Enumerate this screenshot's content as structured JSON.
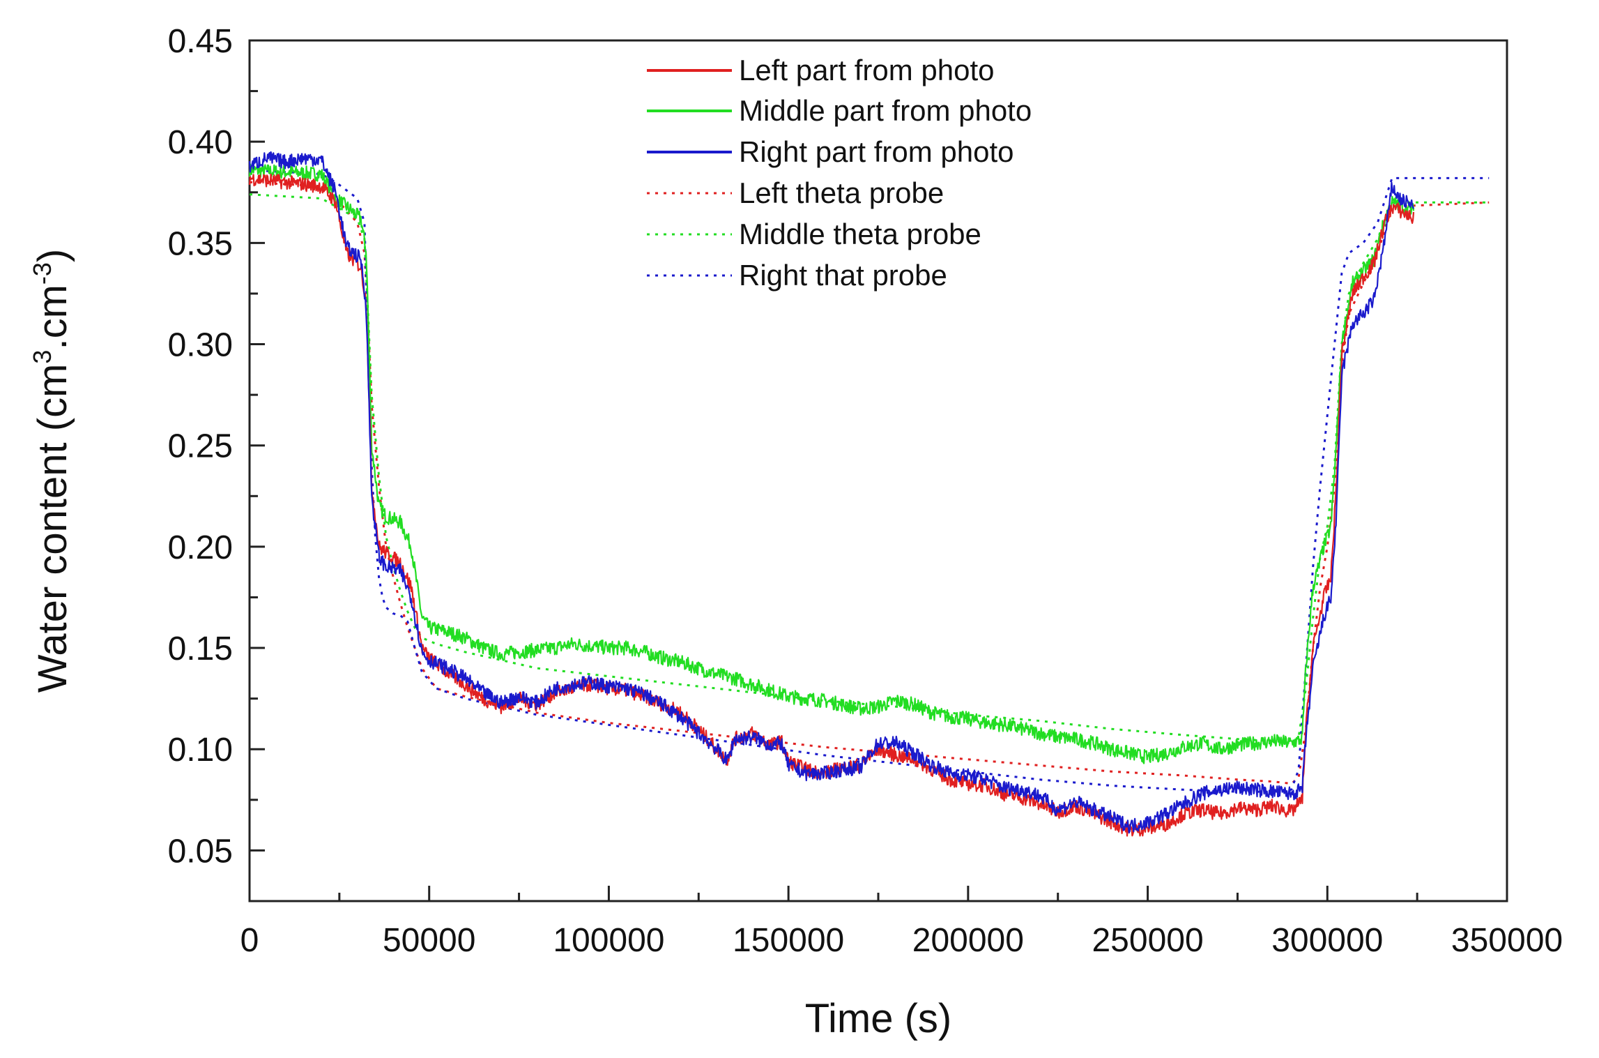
{
  "chart_data": {
    "type": "line",
    "title": "",
    "xlabel": "Time (s)",
    "ylabel_main": "Water content (cm",
    "ylabel_sup1": "3",
    "ylabel_mid": ".cm",
    "ylabel_sup2": "-3",
    "ylabel_end": ")",
    "xlim": [
      0,
      350000
    ],
    "ylim": [
      0.025,
      0.45
    ],
    "xticks": [
      "0",
      "50000",
      "100000",
      "150000",
      "200000",
      "250000",
      "300000",
      "350000"
    ],
    "yticks": [
      "0.05",
      "0.10",
      "0.15",
      "0.20",
      "0.25",
      "0.30",
      "0.35",
      "0.40",
      "0.45"
    ],
    "legend_position": "top-center",
    "series": [
      {
        "name": "Left part from photo",
        "style": "solid",
        "color": "#e02020",
        "x": [
          0,
          10000,
          20000,
          24000,
          27000,
          31000,
          32500,
          34000,
          36000,
          38000,
          42000,
          45000,
          48000,
          50000,
          55000,
          60000,
          65000,
          70000,
          75000,
          80000,
          85000,
          90000,
          95000,
          100000,
          105000,
          110000,
          115000,
          120000,
          125000,
          130000,
          133000,
          135000,
          140000,
          145000,
          148000,
          150000,
          155000,
          160000,
          165000,
          170000,
          175000,
          180000,
          185000,
          190000,
          195000,
          200000,
          205000,
          210000,
          215000,
          220000,
          225000,
          230000,
          235000,
          240000,
          245000,
          250000,
          255000,
          260000,
          265000,
          270000,
          275000,
          280000,
          285000,
          290000,
          293000,
          294000,
          296000,
          299000,
          301000,
          302500,
          304000,
          307000,
          310000,
          313000,
          316000,
          318000,
          320000,
          322000,
          324000
        ],
        "y": [
          0.382,
          0.38,
          0.378,
          0.37,
          0.345,
          0.338,
          0.32,
          0.23,
          0.2,
          0.197,
          0.192,
          0.18,
          0.15,
          0.145,
          0.138,
          0.132,
          0.125,
          0.121,
          0.125,
          0.122,
          0.128,
          0.13,
          0.132,
          0.13,
          0.129,
          0.126,
          0.122,
          0.118,
          0.11,
          0.1,
          0.095,
          0.105,
          0.108,
          0.102,
          0.104,
          0.094,
          0.09,
          0.088,
          0.091,
          0.092,
          0.1,
          0.097,
          0.095,
          0.09,
          0.085,
          0.083,
          0.082,
          0.078,
          0.076,
          0.073,
          0.069,
          0.072,
          0.068,
          0.064,
          0.06,
          0.061,
          0.063,
          0.068,
          0.07,
          0.068,
          0.071,
          0.07,
          0.072,
          0.069,
          0.075,
          0.11,
          0.15,
          0.175,
          0.185,
          0.23,
          0.295,
          0.325,
          0.333,
          0.34,
          0.36,
          0.368,
          0.366,
          0.364,
          0.362
        ]
      },
      {
        "name": "Middle part from photo",
        "style": "solid",
        "color": "#22dd22",
        "x": [
          0,
          10000,
          20000,
          24000,
          27000,
          31000,
          32500,
          34000,
          36000,
          38000,
          42000,
          45000,
          48000,
          50000,
          55000,
          60000,
          65000,
          70000,
          75000,
          80000,
          85000,
          90000,
          95000,
          100000,
          105000,
          110000,
          115000,
          120000,
          125000,
          130000,
          135000,
          140000,
          145000,
          150000,
          155000,
          160000,
          165000,
          170000,
          175000,
          180000,
          185000,
          190000,
          195000,
          200000,
          205000,
          210000,
          215000,
          220000,
          225000,
          230000,
          235000,
          240000,
          245000,
          250000,
          255000,
          260000,
          265000,
          270000,
          275000,
          280000,
          285000,
          290000,
          293000,
          294000,
          296000,
          299000,
          301000,
          302500,
          304000,
          307000,
          310000,
          313000,
          316000,
          318000,
          320000,
          322000,
          324000
        ],
        "y": [
          0.386,
          0.385,
          0.384,
          0.372,
          0.368,
          0.362,
          0.345,
          0.25,
          0.22,
          0.215,
          0.212,
          0.2,
          0.165,
          0.16,
          0.158,
          0.155,
          0.15,
          0.147,
          0.148,
          0.149,
          0.15,
          0.152,
          0.151,
          0.15,
          0.15,
          0.148,
          0.145,
          0.143,
          0.14,
          0.137,
          0.135,
          0.132,
          0.129,
          0.126,
          0.125,
          0.124,
          0.122,
          0.12,
          0.121,
          0.124,
          0.122,
          0.118,
          0.116,
          0.115,
          0.113,
          0.112,
          0.11,
          0.108,
          0.106,
          0.105,
          0.103,
          0.1,
          0.098,
          0.096,
          0.098,
          0.101,
          0.103,
          0.1,
          0.102,
          0.103,
          0.104,
          0.103,
          0.105,
          0.14,
          0.18,
          0.2,
          0.21,
          0.25,
          0.3,
          0.33,
          0.336,
          0.342,
          0.362,
          0.37,
          0.369,
          0.367,
          0.366
        ]
      },
      {
        "name": "Right part from photo",
        "style": "solid",
        "color": "#1a1acc",
        "x": [
          0,
          5000,
          10000,
          15000,
          20000,
          24000,
          27000,
          31000,
          32500,
          34000,
          36000,
          38000,
          42000,
          45000,
          48000,
          50000,
          55000,
          60000,
          65000,
          70000,
          75000,
          80000,
          85000,
          90000,
          95000,
          100000,
          105000,
          110000,
          115000,
          120000,
          125000,
          130000,
          133000,
          135000,
          140000,
          145000,
          148000,
          150000,
          155000,
          160000,
          165000,
          170000,
          175000,
          180000,
          185000,
          190000,
          195000,
          200000,
          205000,
          210000,
          215000,
          220000,
          225000,
          230000,
          235000,
          240000,
          245000,
          250000,
          255000,
          260000,
          265000,
          270000,
          275000,
          280000,
          285000,
          290000,
          293000,
          294000,
          296000,
          299000,
          301000,
          302500,
          304000,
          307000,
          310000,
          313000,
          316000,
          318000,
          320000,
          322000,
          324000
        ],
        "y": [
          0.388,
          0.392,
          0.39,
          0.392,
          0.391,
          0.375,
          0.348,
          0.342,
          0.318,
          0.225,
          0.195,
          0.19,
          0.188,
          0.175,
          0.148,
          0.144,
          0.14,
          0.135,
          0.128,
          0.123,
          0.126,
          0.123,
          0.13,
          0.132,
          0.133,
          0.131,
          0.13,
          0.127,
          0.122,
          0.116,
          0.108,
          0.1,
          0.094,
          0.105,
          0.106,
          0.102,
          0.103,
          0.092,
          0.088,
          0.088,
          0.09,
          0.091,
          0.103,
          0.103,
          0.098,
          0.092,
          0.088,
          0.087,
          0.085,
          0.081,
          0.08,
          0.077,
          0.07,
          0.074,
          0.07,
          0.066,
          0.062,
          0.064,
          0.068,
          0.073,
          0.078,
          0.08,
          0.081,
          0.08,
          0.079,
          0.078,
          0.08,
          0.105,
          0.14,
          0.165,
          0.175,
          0.215,
          0.285,
          0.31,
          0.315,
          0.322,
          0.352,
          0.378,
          0.372,
          0.37,
          0.368
        ]
      },
      {
        "name": "Left theta probe",
        "style": "dotted",
        "color": "#e02020",
        "x": [
          0,
          20000,
          24000,
          30000,
          32000,
          33000,
          34000,
          36000,
          38000,
          40000,
          42000,
          44000,
          46000,
          48000,
          52000,
          60000,
          80000,
          100000,
          120000,
          140000,
          160000,
          180000,
          200000,
          220000,
          240000,
          260000,
          275000,
          285000,
          290000,
          292000,
          294000,
          296000,
          298000,
          300000,
          302000,
          304000,
          306000,
          310000,
          314000,
          318000,
          345000
        ],
        "y": [
          0.38,
          0.378,
          0.372,
          0.36,
          0.345,
          0.31,
          0.27,
          0.23,
          0.2,
          0.185,
          0.172,
          0.16,
          0.15,
          0.14,
          0.13,
          0.126,
          0.118,
          0.113,
          0.109,
          0.105,
          0.101,
          0.098,
          0.095,
          0.092,
          0.089,
          0.087,
          0.085,
          0.084,
          0.083,
          0.086,
          0.11,
          0.15,
          0.18,
          0.2,
          0.23,
          0.29,
          0.315,
          0.33,
          0.345,
          0.368,
          0.37
        ]
      },
      {
        "name": "Middle theta probe",
        "style": "dotted",
        "color": "#22dd22",
        "x": [
          0,
          20000,
          24000,
          30000,
          32000,
          33000,
          34000,
          36000,
          38000,
          40000,
          42000,
          44000,
          46000,
          48000,
          52000,
          60000,
          80000,
          100000,
          120000,
          140000,
          160000,
          180000,
          200000,
          220000,
          240000,
          260000,
          275000,
          285000,
          290000,
          292000,
          294000,
          296000,
          298000,
          300000,
          302000,
          304000,
          306000,
          310000,
          314000,
          318000,
          345000
        ],
        "y": [
          0.374,
          0.372,
          0.368,
          0.362,
          0.352,
          0.315,
          0.275,
          0.235,
          0.205,
          0.19,
          0.178,
          0.168,
          0.16,
          0.155,
          0.152,
          0.148,
          0.14,
          0.136,
          0.132,
          0.128,
          0.124,
          0.121,
          0.117,
          0.114,
          0.11,
          0.107,
          0.105,
          0.104,
          0.103,
          0.106,
          0.13,
          0.165,
          0.195,
          0.21,
          0.24,
          0.3,
          0.325,
          0.34,
          0.352,
          0.37,
          0.37
        ]
      },
      {
        "name": "Right that probe",
        "style": "dotted",
        "color": "#1a1acc",
        "x": [
          0,
          20000,
          24000,
          30000,
          32000,
          33000,
          34000,
          35000,
          36000,
          37000,
          38000,
          40000,
          42000,
          44000,
          46000,
          48000,
          52000,
          60000,
          80000,
          100000,
          120000,
          140000,
          160000,
          180000,
          200000,
          220000,
          240000,
          260000,
          275000,
          285000,
          290000,
          292000,
          294000,
          296000,
          298000,
          300000,
          302000,
          304000,
          306000,
          310000,
          314000,
          318000,
          345000
        ],
        "y": [
          0.386,
          0.384,
          0.38,
          0.372,
          0.36,
          0.3,
          0.24,
          0.205,
          0.185,
          0.175,
          0.17,
          0.167,
          0.166,
          0.163,
          0.15,
          0.138,
          0.13,
          0.125,
          0.117,
          0.112,
          0.107,
          0.102,
          0.097,
          0.093,
          0.089,
          0.085,
          0.082,
          0.08,
          0.079,
          0.079,
          0.08,
          0.09,
          0.14,
          0.19,
          0.23,
          0.265,
          0.3,
          0.335,
          0.345,
          0.35,
          0.36,
          0.382,
          0.382
        ]
      }
    ]
  }
}
